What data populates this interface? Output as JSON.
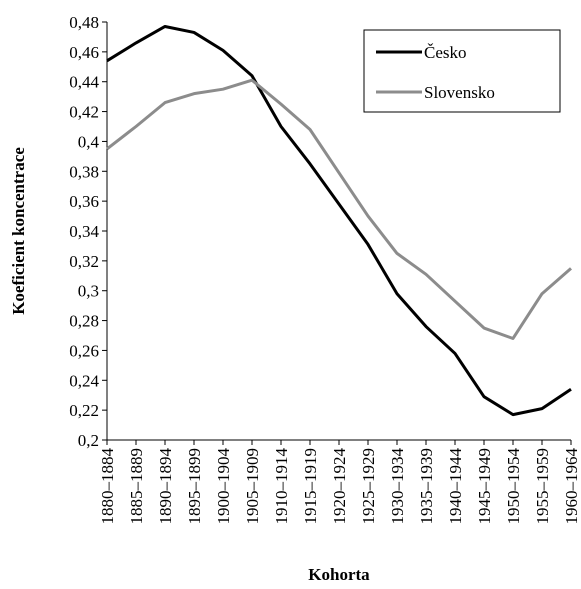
{
  "chart_data": {
    "type": "line",
    "y_label": "Koeficient koncentrace",
    "x_label": "Kohorta",
    "categories": [
      "1880–1884",
      "1885–1889",
      "1890–1894",
      "1895–1899",
      "1900–1904",
      "1905–1909",
      "1910–1914",
      "1915–1919",
      "1920–1924",
      "1925–1929",
      "1930–1934",
      "1935–1939",
      "1940–1944",
      "1945–1949",
      "1950–1954",
      "1955–1959",
      "1960–1964"
    ],
    "series": [
      {
        "name": "Česko",
        "color": "#000000",
        "values": [
          0.454,
          0.466,
          0.477,
          0.473,
          0.461,
          0.444,
          0.41,
          0.385,
          0.358,
          0.331,
          0.298,
          0.276,
          0.258,
          0.229,
          0.217,
          0.221,
          0.234
        ]
      },
      {
        "name": "Slovensko",
        "color": "#8c8c8c",
        "values": [
          0.395,
          0.41,
          0.426,
          0.432,
          0.435,
          0.441,
          0.425,
          0.408,
          0.379,
          0.35,
          0.325,
          0.311,
          0.293,
          0.275,
          0.268,
          0.298,
          0.315
        ]
      }
    ],
    "ylim": [
      0.2,
      0.48
    ],
    "yticks": [
      {
        "value": 0.2,
        "label": "0,2"
      },
      {
        "value": 0.22,
        "label": "0,22"
      },
      {
        "value": 0.24,
        "label": "0,24"
      },
      {
        "value": 0.26,
        "label": "0,26"
      },
      {
        "value": 0.28,
        "label": "0,28"
      },
      {
        "value": 0.3,
        "label": "0,3"
      },
      {
        "value": 0.32,
        "label": "0,32"
      },
      {
        "value": 0.34,
        "label": "0,34"
      },
      {
        "value": 0.36,
        "label": "0,36"
      },
      {
        "value": 0.38,
        "label": "0,38"
      },
      {
        "value": 0.4,
        "label": "0,4"
      },
      {
        "value": 0.42,
        "label": "0,42"
      },
      {
        "value": 0.44,
        "label": "0,44"
      },
      {
        "value": 0.46,
        "label": "0,46"
      },
      {
        "value": 0.48,
        "label": "0,48"
      }
    ],
    "grid": false,
    "legend": "top-right"
  }
}
